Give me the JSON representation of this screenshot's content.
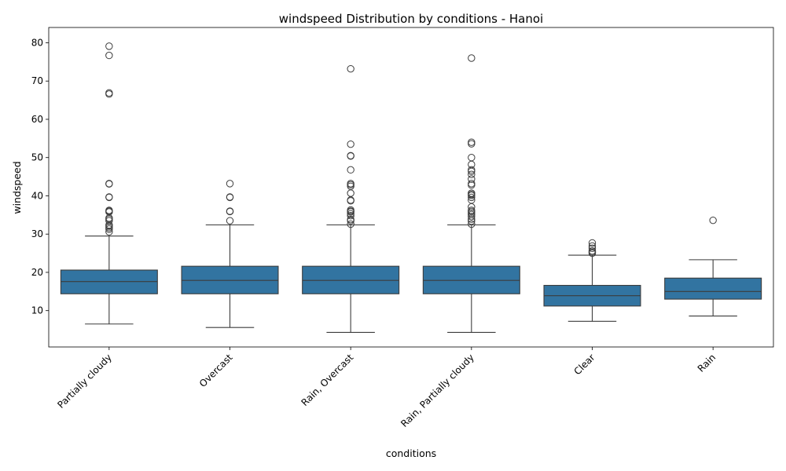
{
  "chart_data": {
    "type": "box",
    "title": "windspeed Distribution by conditions - Hanoi",
    "xlabel": "conditions",
    "ylabel": "windspeed",
    "ylim": [
      0.5,
      84
    ],
    "yticks": [
      10,
      20,
      30,
      40,
      50,
      60,
      70,
      80
    ],
    "grid": false,
    "box_color": "#3274a1",
    "line_color": "#3c3c3c",
    "categories": [
      "Partially cloudy",
      "Overcast",
      "Rain, Overcast",
      "Rain, Partially cloudy",
      "Clear",
      "Rain"
    ],
    "boxes": [
      {
        "whisker_low": 6.5,
        "q1": 14.4,
        "median": 17.6,
        "q3": 20.6,
        "whisker_high": 29.5,
        "outliers": [
          30.6,
          31.3,
          31.7,
          32.1,
          32.4,
          33.5,
          33.9,
          34.2,
          35.8,
          36.0,
          36.2,
          39.6,
          39.7,
          43.1,
          43.2,
          66.6,
          66.9,
          76.7,
          79.1
        ]
      },
      {
        "whisker_low": 5.6,
        "q1": 14.4,
        "median": 17.9,
        "q3": 21.6,
        "whisker_high": 32.4,
        "outliers": [
          33.5,
          35.9,
          36.0,
          39.6,
          39.7,
          43.2
        ]
      },
      {
        "whisker_low": 4.3,
        "q1": 14.4,
        "median": 17.9,
        "q3": 21.6,
        "whisker_high": 32.4,
        "outliers": [
          32.6,
          33.5,
          33.8,
          34.8,
          35.3,
          35.8,
          36.0,
          36.3,
          38.7,
          38.9,
          40.7,
          42.5,
          42.9,
          43.2,
          46.8,
          50.4,
          50.5,
          53.5,
          73.2
        ]
      },
      {
        "whisker_low": 4.3,
        "q1": 14.4,
        "median": 17.9,
        "q3": 21.6,
        "whisker_high": 32.4,
        "outliers": [
          32.6,
          33.4,
          33.9,
          34.6,
          35.1,
          35.5,
          35.9,
          36.2,
          37.1,
          38.9,
          39.6,
          40.1,
          40.4,
          40.7,
          42.8,
          43.2,
          44.4,
          45.6,
          46.4,
          46.8,
          48.2,
          50.0,
          53.6,
          54.0,
          76.0
        ]
      },
      {
        "whisker_low": 7.2,
        "q1": 11.2,
        "median": 13.9,
        "q3": 16.6,
        "whisker_high": 24.5,
        "outliers": [
          25.0,
          25.3,
          25.6,
          26.3,
          26.9,
          27.7
        ]
      },
      {
        "whisker_low": 8.6,
        "q1": 13.0,
        "median": 15.0,
        "q3": 18.5,
        "whisker_high": 23.3,
        "outliers": [
          33.6
        ]
      }
    ]
  }
}
